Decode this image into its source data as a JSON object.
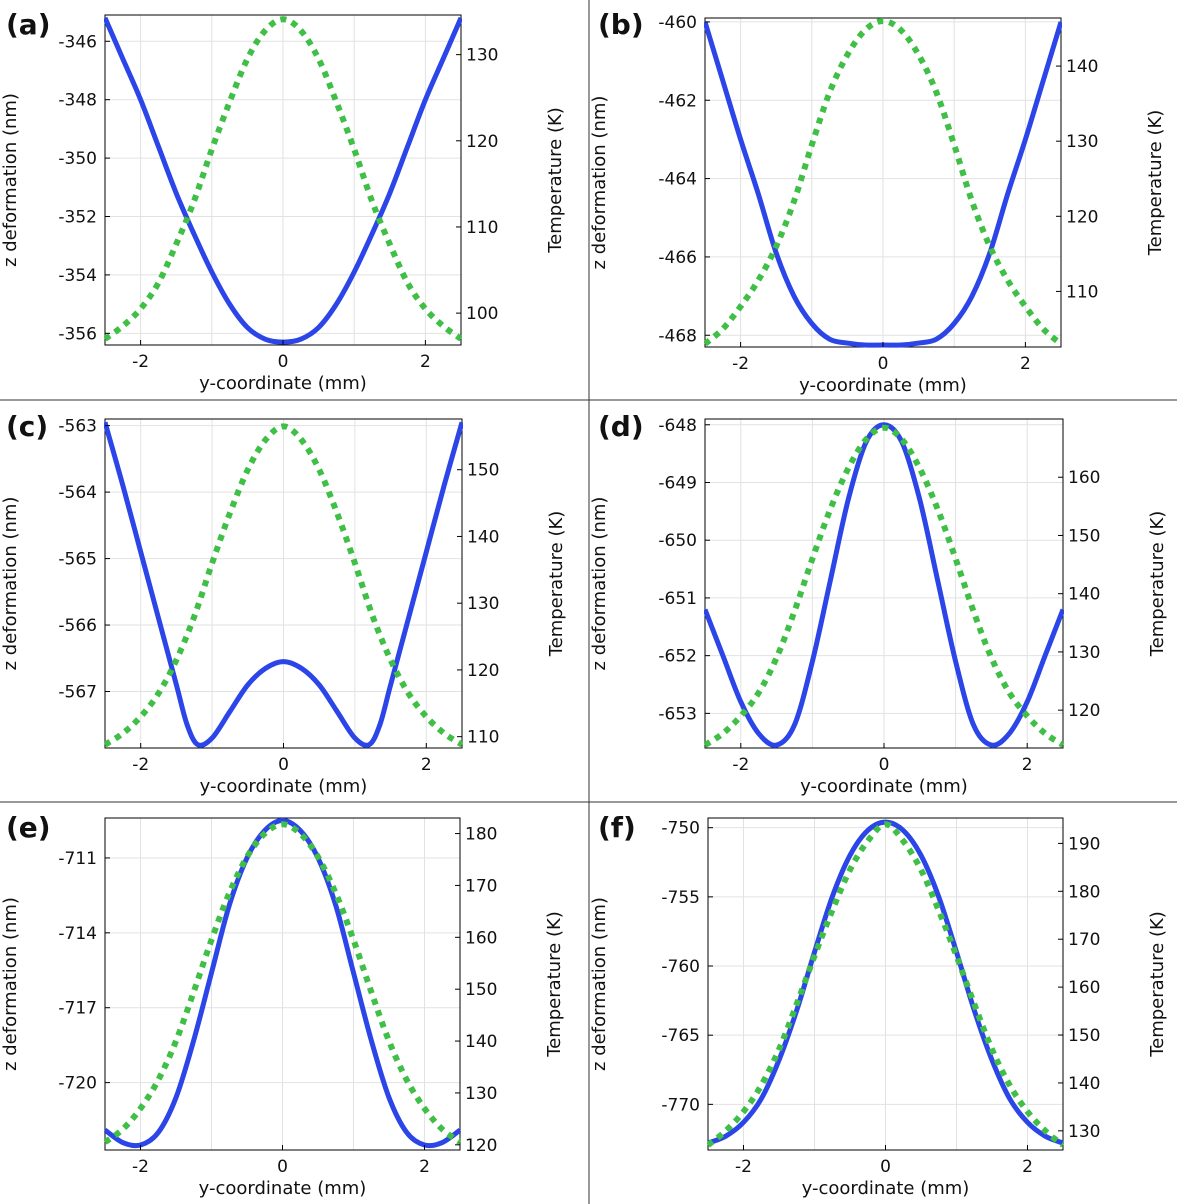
{
  "colors": {
    "deformation": "#2b45e8",
    "temperature": "#3fbf46",
    "grid": "#e2e2e2",
    "axis": "#000000",
    "divider": "#333333"
  },
  "chart_data": [
    {
      "type": "line",
      "panel_label": "(a)",
      "xlabel": "y-coordinate (mm)",
      "ylabel": "z deformation (nm)",
      "y2label": "Temperature (K)",
      "xlim": [
        -2.5,
        2.5
      ],
      "ylim": [
        -356.4,
        -345.1
      ],
      "y2lim": [
        96.3,
        134.6
      ],
      "xticks": [
        -2,
        0,
        2
      ],
      "yticks": [
        -356,
        -354,
        -352,
        -350,
        -348,
        -346
      ],
      "y2ticks": [
        100,
        110,
        120,
        130
      ],
      "series": [
        {
          "axis": "left",
          "style": "solid",
          "x": [
            -2.5,
            -2.25,
            -2.0,
            -1.75,
            -1.5,
            -1.25,
            -1.0,
            -0.75,
            -0.5,
            -0.25,
            0,
            0.25,
            0.5,
            0.75,
            1.0,
            1.25,
            1.5,
            1.75,
            2.0,
            2.25,
            2.5
          ],
          "y": [
            -345.2,
            -346.6,
            -348.0,
            -349.6,
            -351.2,
            -352.6,
            -353.9,
            -355.0,
            -355.8,
            -356.2,
            -356.3,
            -356.2,
            -355.8,
            -355.0,
            -353.9,
            -352.6,
            -351.2,
            -349.6,
            -348.0,
            -346.6,
            -345.2
          ]
        },
        {
          "axis": "right",
          "style": "dotted",
          "x": [
            -2.5,
            -2.25,
            -2.0,
            -1.75,
            -1.5,
            -1.25,
            -1.0,
            -0.75,
            -0.5,
            -0.25,
            0,
            0.25,
            0.5,
            0.75,
            1.0,
            1.25,
            1.5,
            1.75,
            2.0,
            2.25,
            2.5
          ],
          "y": [
            97.0,
            98.5,
            100.5,
            103.5,
            108.0,
            113.0,
            119.0,
            124.5,
            129.5,
            132.8,
            134.1,
            132.8,
            129.5,
            124.5,
            119.0,
            113.0,
            108.0,
            103.5,
            100.5,
            98.5,
            97.0
          ]
        }
      ]
    },
    {
      "type": "line",
      "panel_label": "(b)",
      "xlabel": "y-coordinate (mm)",
      "ylabel": "z deformation (nm)",
      "y2label": "Temperature (K)",
      "xlim": [
        -2.5,
        2.5
      ],
      "ylim": [
        -468.3,
        -459.9
      ],
      "y2lim": [
        102.6,
        146.4
      ],
      "xticks": [
        -2,
        0,
        2
      ],
      "yticks": [
        -468,
        -466,
        -464,
        -462,
        -460
      ],
      "y2ticks": [
        110,
        120,
        130,
        140
      ],
      "series": [
        {
          "axis": "left",
          "style": "solid",
          "x": [
            -2.5,
            -2.25,
            -2.0,
            -1.75,
            -1.5,
            -1.25,
            -1.0,
            -0.75,
            -0.5,
            -0.25,
            0,
            0.25,
            0.5,
            0.75,
            1.0,
            1.25,
            1.5,
            1.75,
            2.0,
            2.25,
            2.5
          ],
          "y": [
            -460.0,
            -461.5,
            -463.0,
            -464.4,
            -465.9,
            -467.0,
            -467.7,
            -468.1,
            -468.2,
            -468.25,
            -468.25,
            -468.25,
            -468.2,
            -468.1,
            -467.7,
            -467.0,
            -465.9,
            -464.4,
            -463.0,
            -461.5,
            -460.0
          ]
        },
        {
          "axis": "right",
          "style": "dotted",
          "x": [
            -2.5,
            -2.25,
            -2.0,
            -1.75,
            -1.5,
            -1.25,
            -1.0,
            -0.75,
            -0.5,
            -0.25,
            0,
            0.25,
            0.5,
            0.75,
            1.0,
            1.25,
            1.5,
            1.75,
            2.0,
            2.25,
            2.5
          ],
          "y": [
            103.0,
            105.0,
            108.0,
            111.5,
            116.0,
            122.0,
            129.5,
            136.5,
            141.5,
            144.8,
            146.0,
            144.8,
            141.5,
            136.5,
            129.5,
            122.0,
            116.0,
            111.5,
            108.0,
            105.0,
            103.0
          ]
        }
      ]
    },
    {
      "type": "line",
      "panel_label": "(c)",
      "xlabel": "y-coordinate (mm)",
      "ylabel": "z deformation (nm)",
      "y2label": "Temperature (K)",
      "xlim": [
        -2.5,
        2.5
      ],
      "ylim": [
        -567.85,
        -562.9
      ],
      "y2lim": [
        108.3,
        157.6
      ],
      "xticks": [
        -2,
        0,
        2
      ],
      "yticks": [
        -567,
        -566,
        -565,
        -564,
        -563
      ],
      "y2ticks": [
        110,
        120,
        130,
        140,
        150
      ],
      "series": [
        {
          "axis": "left",
          "style": "solid",
          "x": [
            -2.5,
            -2.25,
            -2.0,
            -1.75,
            -1.5,
            -1.35,
            -1.2,
            -1.0,
            -0.75,
            -0.5,
            -0.25,
            0,
            0.25,
            0.5,
            0.75,
            1.0,
            1.2,
            1.35,
            1.5,
            1.75,
            2.0,
            2.25,
            2.5
          ],
          "y": [
            -562.95,
            -563.9,
            -564.9,
            -565.9,
            -566.9,
            -567.5,
            -567.8,
            -567.7,
            -567.3,
            -566.9,
            -566.65,
            -566.55,
            -566.65,
            -566.9,
            -567.3,
            -567.7,
            -567.8,
            -567.5,
            -566.9,
            -565.9,
            -564.9,
            -563.9,
            -562.95
          ]
        },
        {
          "axis": "right",
          "style": "dotted",
          "x": [
            -2.5,
            -2.25,
            -2.0,
            -1.75,
            -1.5,
            -1.25,
            -1.0,
            -0.75,
            -0.5,
            -0.25,
            0,
            0.25,
            0.5,
            0.75,
            1.0,
            1.25,
            1.5,
            1.75,
            2.0,
            2.25,
            2.5
          ],
          "y": [
            108.8,
            110.5,
            113.0,
            116.5,
            121.5,
            128.0,
            136.0,
            143.5,
            150.0,
            154.5,
            156.5,
            154.5,
            150.0,
            143.5,
            136.0,
            128.0,
            121.5,
            116.5,
            113.0,
            110.5,
            108.8
          ]
        }
      ]
    },
    {
      "type": "line",
      "panel_label": "(d)",
      "xlabel": "y-coordinate (mm)",
      "ylabel": "z deformation (nm)",
      "y2label": "Temperature (K)",
      "xlim": [
        -2.5,
        2.5
      ],
      "ylim": [
        -653.6,
        -647.9
      ],
      "y2lim": [
        113.5,
        170.0
      ],
      "xticks": [
        -2,
        0,
        2
      ],
      "yticks": [
        -653,
        -652,
        -651,
        -650,
        -649,
        -648
      ],
      "y2ticks": [
        120,
        130,
        140,
        150,
        160
      ],
      "series": [
        {
          "axis": "left",
          "style": "solid",
          "x": [
            -2.5,
            -2.25,
            -2.0,
            -1.75,
            -1.5,
            -1.25,
            -1.0,
            -0.75,
            -0.5,
            -0.25,
            0,
            0.25,
            0.5,
            0.75,
            1.0,
            1.25,
            1.5,
            1.75,
            2.0,
            2.25,
            2.5
          ],
          "y": [
            -651.2,
            -652.0,
            -652.8,
            -653.35,
            -653.55,
            -653.2,
            -652.1,
            -650.7,
            -649.3,
            -648.3,
            -648.0,
            -648.3,
            -649.3,
            -650.7,
            -652.1,
            -653.2,
            -653.55,
            -653.35,
            -652.8,
            -652.0,
            -651.2
          ]
        },
        {
          "axis": "right",
          "style": "dotted",
          "x": [
            -2.5,
            -2.25,
            -2.0,
            -1.75,
            -1.5,
            -1.25,
            -1.0,
            -0.75,
            -0.5,
            -0.25,
            0,
            0.25,
            0.5,
            0.75,
            1.0,
            1.25,
            1.5,
            1.75,
            2.0,
            2.25,
            2.5
          ],
          "y": [
            114.0,
            116.0,
            119.0,
            123.0,
            129.0,
            137.0,
            146.0,
            154.5,
            161.5,
            166.5,
            168.5,
            166.5,
            161.5,
            154.5,
            146.0,
            137.0,
            129.0,
            123.0,
            119.0,
            116.0,
            114.0
          ]
        }
      ]
    },
    {
      "type": "line",
      "panel_label": "(e)",
      "xlabel": "y-coordinate (mm)",
      "ylabel": "z deformation (nm)",
      "y2label": "Temperature (K)",
      "xlim": [
        -2.5,
        2.5
      ],
      "ylim": [
        -722.7,
        -709.4
      ],
      "y2lim": [
        119.0,
        183.0
      ],
      "xticks": [
        -2,
        0,
        2
      ],
      "yticks": [
        -720,
        -717,
        -714,
        -711
      ],
      "y2ticks": [
        120,
        130,
        140,
        150,
        160,
        170,
        180
      ],
      "series": [
        {
          "axis": "left",
          "style": "solid",
          "x": [
            -2.5,
            -2.25,
            -2.0,
            -1.75,
            -1.5,
            -1.25,
            -1.0,
            -0.75,
            -0.5,
            -0.25,
            0,
            0.25,
            0.5,
            0.75,
            1.0,
            1.25,
            1.5,
            1.75,
            2.0,
            2.25,
            2.5
          ],
          "y": [
            -721.9,
            -722.4,
            -722.5,
            -722.0,
            -720.6,
            -718.3,
            -715.6,
            -712.9,
            -711.0,
            -709.9,
            -709.5,
            -709.9,
            -711.0,
            -712.9,
            -715.6,
            -718.3,
            -720.6,
            -722.0,
            -722.5,
            -722.4,
            -721.9
          ]
        },
        {
          "axis": "right",
          "style": "dotted",
          "x": [
            -2.5,
            -2.25,
            -2.0,
            -1.75,
            -1.5,
            -1.25,
            -1.0,
            -0.75,
            -0.5,
            -0.25,
            0,
            0.25,
            0.5,
            0.75,
            1.0,
            1.25,
            1.5,
            1.75,
            2.0,
            2.25,
            2.5
          ],
          "y": [
            120.5,
            123.0,
            127.0,
            132.5,
            140.0,
            149.5,
            159.5,
            168.5,
            175.5,
            180.0,
            181.8,
            180.0,
            175.5,
            168.5,
            159.5,
            149.5,
            140.0,
            132.5,
            127.0,
            123.0,
            120.5
          ]
        }
      ]
    },
    {
      "type": "line",
      "panel_label": "(f)",
      "xlabel": "y-coordinate (mm)",
      "ylabel": "z deformation (nm)",
      "y2label": "Temperature (K)",
      "xlim": [
        -2.5,
        2.5
      ],
      "ylim": [
        -773.3,
        -749.3
      ],
      "y2lim": [
        126.0,
        195.3
      ],
      "xticks": [
        -2,
        0,
        2
      ],
      "yticks": [
        -770,
        -765,
        -760,
        -755,
        -750
      ],
      "y2ticks": [
        130,
        140,
        150,
        160,
        170,
        180,
        190
      ],
      "series": [
        {
          "axis": "left",
          "style": "solid",
          "x": [
            -2.5,
            -2.25,
            -2.0,
            -1.75,
            -1.5,
            -1.25,
            -1.0,
            -0.75,
            -0.5,
            -0.25,
            0,
            0.25,
            0.5,
            0.75,
            1.0,
            1.25,
            1.5,
            1.75,
            2.0,
            2.25,
            2.5
          ],
          "y": [
            -772.8,
            -772.3,
            -771.3,
            -769.6,
            -766.8,
            -763.2,
            -759.0,
            -755.0,
            -752.0,
            -750.2,
            -749.6,
            -750.2,
            -752.0,
            -755.0,
            -759.0,
            -763.2,
            -766.8,
            -769.6,
            -771.3,
            -772.3,
            -772.8
          ]
        },
        {
          "axis": "right",
          "style": "dotted",
          "x": [
            -2.5,
            -2.25,
            -2.0,
            -1.75,
            -1.5,
            -1.25,
            -1.0,
            -0.75,
            -0.5,
            -0.25,
            0,
            0.25,
            0.5,
            0.75,
            1.0,
            1.25,
            1.5,
            1.75,
            2.0,
            2.25,
            2.5
          ],
          "y": [
            127.0,
            130.0,
            134.0,
            139.5,
            147.0,
            156.5,
            166.5,
            176.0,
            184.5,
            190.5,
            194.0,
            190.5,
            184.5,
            176.0,
            166.5,
            156.5,
            147.0,
            139.5,
            134.0,
            130.0,
            127.0
          ]
        }
      ]
    }
  ]
}
